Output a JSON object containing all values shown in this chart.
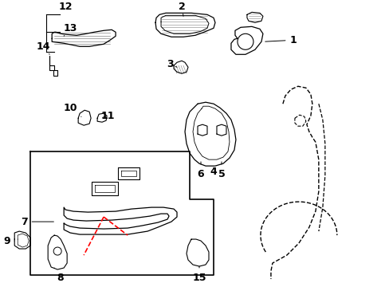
{
  "background_color": "#ffffff",
  "line_color": "#000000",
  "red_dashed_color": "#ff0000",
  "figsize": [
    4.89,
    3.6
  ],
  "dpi": 100
}
